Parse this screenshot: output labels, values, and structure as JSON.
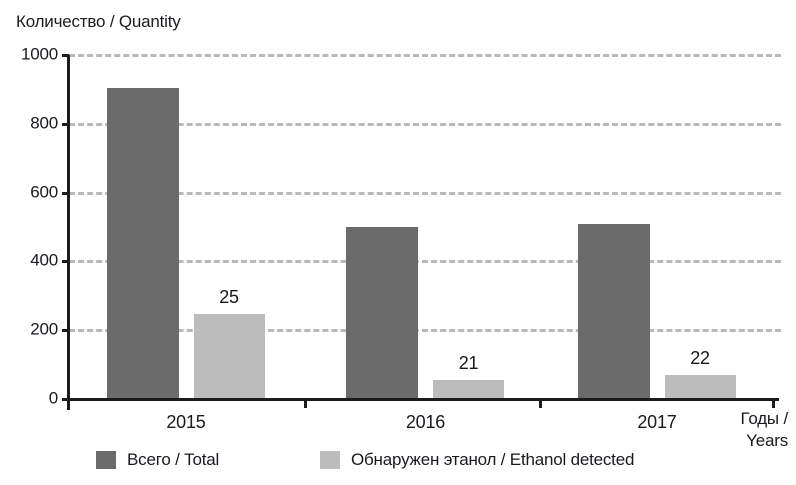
{
  "chart_data": {
    "type": "bar",
    "title": "Количество / Quantity",
    "xlabel_line1": "Годы /",
    "xlabel_line2": "Years",
    "categories": [
      "2015",
      "2016",
      "2017"
    ],
    "series": [
      {
        "name": "Всего / Total",
        "color": "#6b6b6b",
        "values": [
          905,
          500,
          510
        ]
      },
      {
        "name": "Обнаружен этанол / Ethanol detected",
        "color": "#bcbcbc",
        "values": [
          248,
          55,
          70
        ],
        "data_labels": [
          "25",
          "21",
          "22"
        ]
      }
    ],
    "ylim": [
      0,
      1000
    ],
    "yticks": [
      0,
      200,
      400,
      600,
      800,
      1000
    ],
    "grid": "horizontal dashed",
    "legend_position": "bottom",
    "axis_color": "#1c1c1c",
    "grid_color": "#b9b9b9"
  }
}
